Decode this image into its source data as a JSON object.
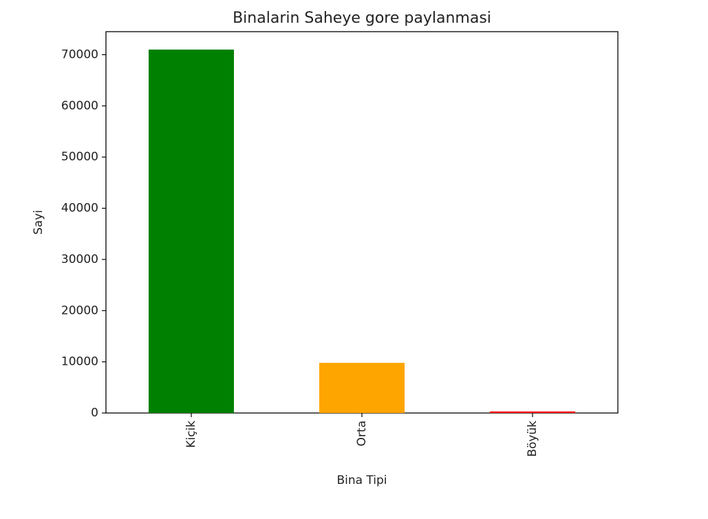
{
  "chart_data": {
    "type": "bar",
    "title": "Binalarin Saheye gore paylanmasi",
    "xlabel": "Bina Tipi",
    "ylabel": "Sayi",
    "categories": [
      "Kiçik",
      "Orta",
      "Böyük"
    ],
    "values": [
      71000,
      9800,
      300
    ],
    "colors": [
      "#008000",
      "#ffa500",
      "#ff0000"
    ],
    "ylim": [
      0,
      74500
    ],
    "yticks": [
      0,
      10000,
      20000,
      30000,
      40000,
      50000,
      60000,
      70000
    ],
    "ytick_labels": [
      "0",
      "10000",
      "20000",
      "30000",
      "40000",
      "50000",
      "60000",
      "70000"
    ],
    "x_tick_rotation": "vertical",
    "grid": false,
    "legend": false
  }
}
